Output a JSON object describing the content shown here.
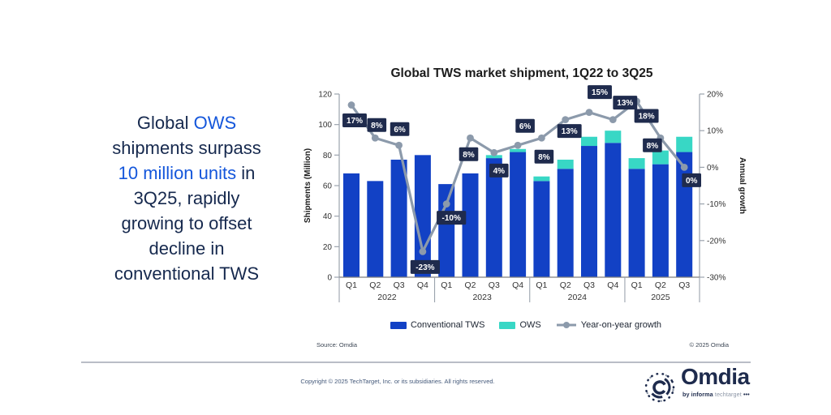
{
  "headline": {
    "lines": [
      [
        {
          "t": "Global ",
          "c": "navy"
        },
        {
          "t": "OWS",
          "c": "blue"
        }
      ],
      [
        {
          "t": "shipments surpass",
          "c": "navy"
        }
      ],
      [
        {
          "t": "10 million units",
          "c": "blue"
        },
        {
          "t": " in",
          "c": "navy"
        }
      ],
      [
        {
          "t": "3Q25, rapidly",
          "c": "navy"
        }
      ],
      [
        {
          "t": "growing to offset",
          "c": "navy"
        }
      ],
      [
        {
          "t": "decline in",
          "c": "navy"
        }
      ],
      [
        {
          "t": "conventional TWS",
          "c": "navy"
        }
      ]
    ]
  },
  "chart": {
    "title": "Global TWS market shipment, 1Q22 to 3Q25",
    "source_note": "Source: Omdia",
    "copyright_note": "© 2025 Omdia"
  },
  "chart_data": {
    "type": "bar",
    "subtype": "stacked-bar-with-line-combo",
    "title": "Global TWS market shipment, 1Q22 to 3Q25",
    "categories": [
      "Q1",
      "Q2",
      "Q3",
      "Q4",
      "Q1",
      "Q2",
      "Q3",
      "Q4",
      "Q1",
      "Q2",
      "Q3",
      "Q4",
      "Q1",
      "Q2",
      "Q3"
    ],
    "groups": [
      {
        "year": "2022",
        "count": 4
      },
      {
        "year": "2023",
        "count": 4
      },
      {
        "year": "2024",
        "count": 4
      },
      {
        "year": "2025",
        "count": 3
      }
    ],
    "series": [
      {
        "name": "Conventional TWS",
        "type": "bar",
        "color": "#1241C5",
        "values": [
          68,
          63,
          77,
          80,
          61,
          68,
          78,
          82,
          63,
          71,
          86,
          88,
          71,
          74,
          82
        ]
      },
      {
        "name": "OWS",
        "type": "bar",
        "color": "#38D7C5",
        "values": [
          0,
          0,
          0,
          0,
          0,
          0,
          2,
          2,
          3,
          6,
          6,
          8,
          7,
          9,
          10
        ]
      },
      {
        "name": "Year-on-year growth",
        "type": "line",
        "axis": "right",
        "color": "#8C9AAB",
        "values": [
          17,
          8,
          6,
          -23,
          -10,
          8,
          4,
          6,
          8,
          13,
          15,
          13,
          18,
          8,
          0
        ],
        "labels": [
          "17%",
          "8%",
          "6%",
          "-23%",
          "-10%",
          "8%",
          "4%",
          "6%",
          "8%",
          "13%",
          "15%",
          "13%",
          "18%",
          "8%",
          "0%"
        ],
        "label_offsets": [
          [
            4,
            19
          ],
          [
            2,
            -16
          ],
          [
            1,
            -20
          ],
          [
            3,
            19
          ],
          [
            6,
            17
          ],
          [
            -2,
            20
          ],
          [
            6,
            22
          ],
          [
            9,
            -24
          ],
          [
            3,
            23
          ],
          [
            5,
            14
          ],
          [
            13,
            -25
          ],
          [
            15,
            -21
          ],
          [
            12,
            18
          ],
          [
            -10,
            9
          ],
          [
            9,
            16
          ]
        ]
      }
    ],
    "left_axis": {
      "label": "Shipments (Million)",
      "min": 0,
      "max": 120,
      "step": 20,
      "ticks": [
        "0",
        "20",
        "40",
        "60",
        "80",
        "100",
        "120"
      ]
    },
    "right_axis": {
      "label": "Annual growth",
      "min": -30,
      "max": 20,
      "step": 10,
      "ticks": [
        "20%",
        "10%",
        "0%",
        "-10%",
        "-20%",
        "-30%"
      ]
    },
    "legend_position": "bottom",
    "grid": false
  },
  "footer": {
    "copyright": "Copyright © 2025 TechTarget, Inc. or its subsidiaries. All rights reserved.",
    "logo": {
      "wordmark": "Omdia",
      "tagline_by_informa": "by informa",
      "tagline_techtarget": "techtarget",
      "tagline_dots": "•••"
    }
  },
  "colors": {
    "conventional_tws": "#1241C5",
    "ows": "#38D7C5",
    "growth_line": "#8C9AAB",
    "label_box": "#1F2B4D",
    "label_text": "#FFFFFF",
    "headline_navy": "#16294E",
    "headline_blue": "#1456DB",
    "logo_navy": "#1E2B4D",
    "logo_gray": "#8C96A6",
    "axis_line": "#9BA3AD",
    "axis_text": "#333333",
    "divider": "#B9BDC6",
    "footer_text": "#44597A"
  }
}
